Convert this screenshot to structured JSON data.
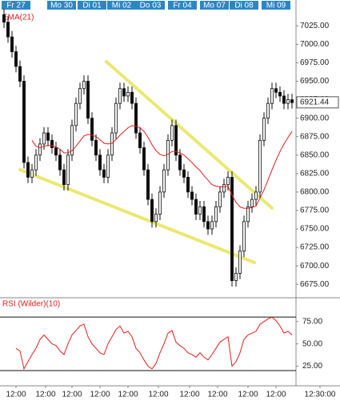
{
  "chart_data": {
    "type": "candlestick",
    "day_ticks": [
      {
        "value": 3,
        "label": "Fr 27"
      },
      {
        "value": 14.4,
        "label": "Mo 30"
      },
      {
        "value": 22,
        "label": "Di 01"
      },
      {
        "value": 29.4,
        "label": "Mi 02"
      },
      {
        "value": 36.6,
        "label": "Do 03"
      },
      {
        "value": 44.6,
        "label": "Fr 04"
      },
      {
        "value": 52.6,
        "label": "Mo 07"
      },
      {
        "value": 60,
        "label": "Di 08"
      },
      {
        "value": 68,
        "label": "Mi 09"
      }
    ],
    "xlim": [
      -1,
      73
    ],
    "xticks": [
      {
        "value": 3,
        "label": "12:00"
      },
      {
        "value": 10.4,
        "label": "12:00"
      },
      {
        "value": 17,
        "label": "12:00"
      },
      {
        "value": 24,
        "label": "12:00"
      },
      {
        "value": 31,
        "label": "12:00"
      },
      {
        "value": 38.6,
        "label": "12:00"
      },
      {
        "value": 46.4,
        "label": "12:00"
      },
      {
        "value": 53.4,
        "label": "12:00"
      },
      {
        "value": 61,
        "label": "12:00"
      },
      {
        "value": 68,
        "label": "12:00"
      },
      {
        "value": 79,
        "label": "12:30:00"
      }
    ],
    "ylim": [
      6659,
      7060
    ],
    "yticks": [
      {
        "value": 6675,
        "label": "6675.00"
      },
      {
        "value": 6700,
        "label": "6700.00"
      },
      {
        "value": 6725,
        "label": "6725.00"
      },
      {
        "value": 6750,
        "label": "6750.00"
      },
      {
        "value": 6775,
        "label": "6775.00"
      },
      {
        "value": 6800,
        "label": "6800.00"
      },
      {
        "value": 6825,
        "label": "6825.00"
      },
      {
        "value": 6850,
        "label": "6850.00"
      },
      {
        "value": 6875,
        "label": "6875.00"
      },
      {
        "value": 6900,
        "label": "6900.00"
      },
      {
        "value": 6925,
        "label": "6925.00"
      },
      {
        "value": 6950,
        "label": "6950.00"
      },
      {
        "value": 6975,
        "label": "6975.00"
      },
      {
        "value": 7000,
        "label": "7000.00"
      },
      {
        "value": 7025,
        "label": "7025.00"
      }
    ],
    "last_price": {
      "value": 6921.44,
      "label": "6921.44"
    },
    "up_color": "#ffffff",
    "down_color": "#111111",
    "open": [
      7040,
      7030,
      7010,
      6990,
      6970,
      6950,
      6840,
      6820,
      6830,
      6850,
      6865,
      6880,
      6870,
      6860,
      6850,
      6830,
      6810,
      6850,
      6890,
      6920,
      6940,
      6950,
      6900,
      6870,
      6850,
      6830,
      6820,
      6850,
      6880,
      6920,
      6940,
      6930,
      6935,
      6920,
      6880,
      6860,
      6830,
      6790,
      6760,
      6770,
      6800,
      6830,
      6870,
      6890,
      6850,
      6830,
      6820,
      6800,
      6790,
      6770,
      6780,
      6760,
      6750,
      6760,
      6780,
      6800,
      6810,
      6820,
      6680,
      6690,
      6720,
      6760,
      6780,
      6790,
      6800,
      6870,
      6900,
      6920,
      6940,
      6935,
      6930,
      6920,
      6925
    ],
    "high": [
      7048,
      7038,
      7018,
      6998,
      6978,
      6958,
      6848,
      6838,
      6858,
      6873,
      6888,
      6888,
      6878,
      6868,
      6858,
      6838,
      6858,
      6898,
      6928,
      6948,
      6958,
      6958,
      6908,
      6878,
      6858,
      6838,
      6858,
      6888,
      6928,
      6948,
      6948,
      6943,
      6943,
      6928,
      6888,
      6868,
      6838,
      6798,
      6778,
      6808,
      6838,
      6878,
      6898,
      6898,
      6858,
      6838,
      6828,
      6808,
      6798,
      6788,
      6788,
      6768,
      6768,
      6788,
      6808,
      6818,
      6828,
      6828,
      6698,
      6728,
      6768,
      6788,
      6798,
      6808,
      6878,
      6908,
      6928,
      6948,
      6948,
      6943,
      6938,
      6933,
      6933
    ],
    "low": [
      7022,
      7002,
      6982,
      6962,
      6942,
      6832,
      6812,
      6812,
      6822,
      6842,
      6857,
      6862,
      6852,
      6842,
      6822,
      6802,
      6802,
      6842,
      6882,
      6912,
      6932,
      6892,
      6862,
      6842,
      6822,
      6812,
      6812,
      6842,
      6872,
      6912,
      6922,
      6922,
      6912,
      6872,
      6852,
      6822,
      6782,
      6752,
      6752,
      6762,
      6792,
      6822,
      6862,
      6842,
      6822,
      6812,
      6792,
      6782,
      6762,
      6762,
      6752,
      6742,
      6742,
      6752,
      6772,
      6792,
      6802,
      6672,
      6672,
      6682,
      6712,
      6752,
      6772,
      6782,
      6792,
      6862,
      6892,
      6912,
      6927,
      6922,
      6912,
      6912,
      6913
    ],
    "close": [
      7030,
      7010,
      6990,
      6970,
      6950,
      6840,
      6820,
      6830,
      6850,
      6865,
      6880,
      6870,
      6860,
      6850,
      6830,
      6810,
      6850,
      6890,
      6920,
      6940,
      6950,
      6900,
      6870,
      6850,
      6830,
      6820,
      6850,
      6880,
      6920,
      6940,
      6930,
      6935,
      6920,
      6880,
      6860,
      6830,
      6790,
      6760,
      6770,
      6800,
      6830,
      6870,
      6890,
      6850,
      6830,
      6820,
      6800,
      6790,
      6770,
      6780,
      6760,
      6750,
      6760,
      6780,
      6800,
      6810,
      6820,
      6680,
      6690,
      6720,
      6760,
      6780,
      6790,
      6800,
      6870,
      6900,
      6920,
      6940,
      6935,
      6930,
      6920,
      6925,
      6921
    ],
    "ema": {
      "name": "EMA(21)",
      "color": "#e0201c",
      "values": [
        null,
        null,
        null,
        null,
        null,
        null,
        null,
        6870,
        6862,
        6860,
        6862,
        6863,
        6863,
        6861,
        6858,
        6853,
        6853,
        6856,
        6862,
        6869,
        6876,
        6878,
        6877,
        6875,
        6871,
        6866,
        6865,
        6866,
        6871,
        6877,
        6882,
        6887,
        6890,
        6889,
        6887,
        6882,
        6874,
        6864,
        6856,
        6851,
        6849,
        6851,
        6855,
        6855,
        6853,
        6850,
        6845,
        6840,
        6834,
        6829,
        6822,
        6816,
        6810,
        6808,
        6807,
        6807,
        6808,
        6796,
        6786,
        6780,
        6778,
        6778,
        6779,
        6781,
        6792,
        6803,
        6816,
        6830,
        6843,
        6855,
        6865,
        6874,
        6882
      ]
    },
    "rsi": {
      "name": "RSI (Wilder)(10)",
      "color": "#e0201c",
      "ylim": [
        3,
        99
      ],
      "yticks": [
        {
          "value": 25,
          "label": "25.00"
        },
        {
          "value": 50,
          "label": "50.00"
        },
        {
          "value": 75,
          "label": "75.00"
        }
      ],
      "levels": [
        20,
        80
      ],
      "values": [
        null,
        null,
        null,
        45,
        42,
        22,
        30,
        38,
        45,
        55,
        60,
        55,
        50,
        48,
        42,
        38,
        50,
        60,
        65,
        70,
        72,
        58,
        50,
        45,
        40,
        38,
        50,
        58,
        66,
        70,
        62,
        64,
        58,
        45,
        40,
        32,
        25,
        22,
        28,
        40,
        50,
        62,
        65,
        52,
        48,
        45,
        40,
        38,
        35,
        40,
        35,
        32,
        38,
        45,
        52,
        55,
        58,
        25,
        30,
        40,
        55,
        60,
        62,
        64,
        72,
        75,
        78,
        80,
        76,
        70,
        62,
        64,
        60
      ]
    }
  }
}
